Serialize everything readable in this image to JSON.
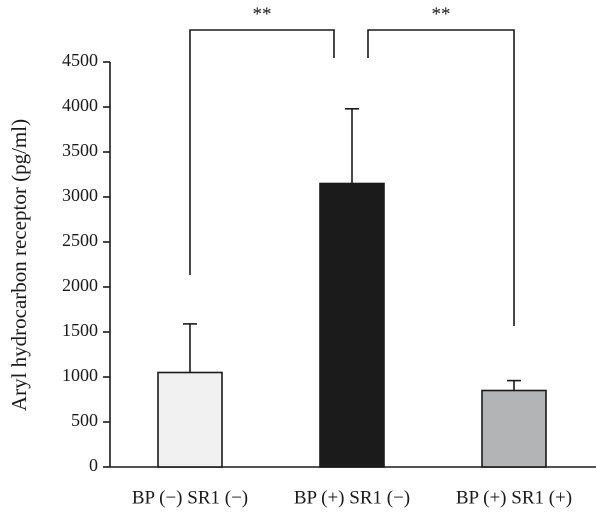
{
  "chart_data": {
    "type": "bar",
    "title": "",
    "xlabel": "",
    "ylabel": "Aryl hydrocarbon receptor (pg/ml)",
    "ylim": [
      0,
      4500
    ],
    "yticks": [
      0,
      500,
      1000,
      1500,
      2000,
      2500,
      3000,
      3500,
      4000,
      4500
    ],
    "categories": [
      "BP (−) SR1 (−)",
      "BP (+) SR1 (−)",
      "BP (+) SR1 (+)"
    ],
    "values": [
      1050,
      3150,
      850
    ],
    "errors": [
      540,
      830,
      110
    ],
    "bar_colors": [
      "#f1f1f2",
      "#1b1b1b",
      "#b3b4b6"
    ],
    "grid": false,
    "significance": [
      {
        "from": 0,
        "to": 1,
        "label": "**"
      },
      {
        "from": 1,
        "to": 2,
        "label": "**"
      }
    ]
  }
}
